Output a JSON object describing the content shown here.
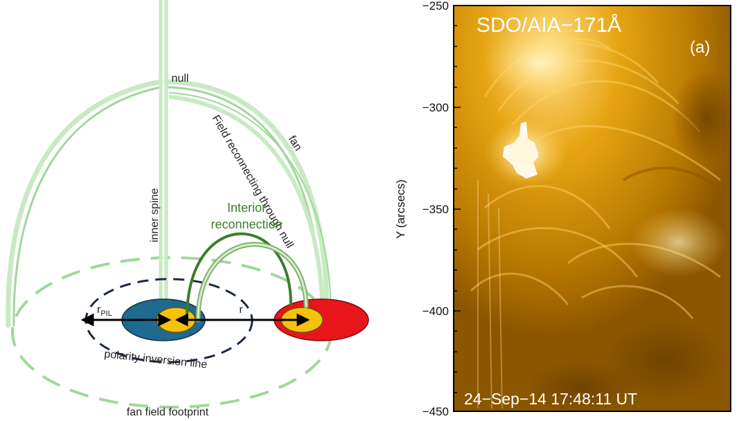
{
  "diagram": {
    "labels": {
      "null": "null",
      "inner_spine": "inner spine",
      "fan": "fan",
      "field_reconnecting": "Field reconnecting through null",
      "interior_line1": "Interior",
      "interior_line2": "reconnection",
      "r_pil_main": "r",
      "r_pil_sub": "PIL",
      "r": "r",
      "pil": "polarity inversion line",
      "fan_footprint": "fan field footprint"
    },
    "colors": {
      "fan_field": "#9fd79a",
      "fan_field_light": "#c8eac3",
      "interior_loop": "#3a7d2a",
      "interior_text": "#3a7d2a",
      "negative_polarity": "#1f6a8e",
      "positive_polarity": "#e8151b",
      "core": "#f4c20d",
      "arrow": "#000000",
      "pil_dashed": "#1a2a40"
    }
  },
  "image_panel": {
    "title": "SDO/AIA−171Å",
    "panel_label": "(a)",
    "timestamp": "24−Sep−14 17:48:11 UT",
    "y_axis_label": "Y (arcsecs)",
    "y_ticks": [
      "−250",
      "−300",
      "−350",
      "−400",
      "−450"
    ],
    "colors": {
      "base": "#c98a00",
      "bright": "#ffd466",
      "dark": "#7a4c00",
      "flare": "#ffffff"
    }
  }
}
